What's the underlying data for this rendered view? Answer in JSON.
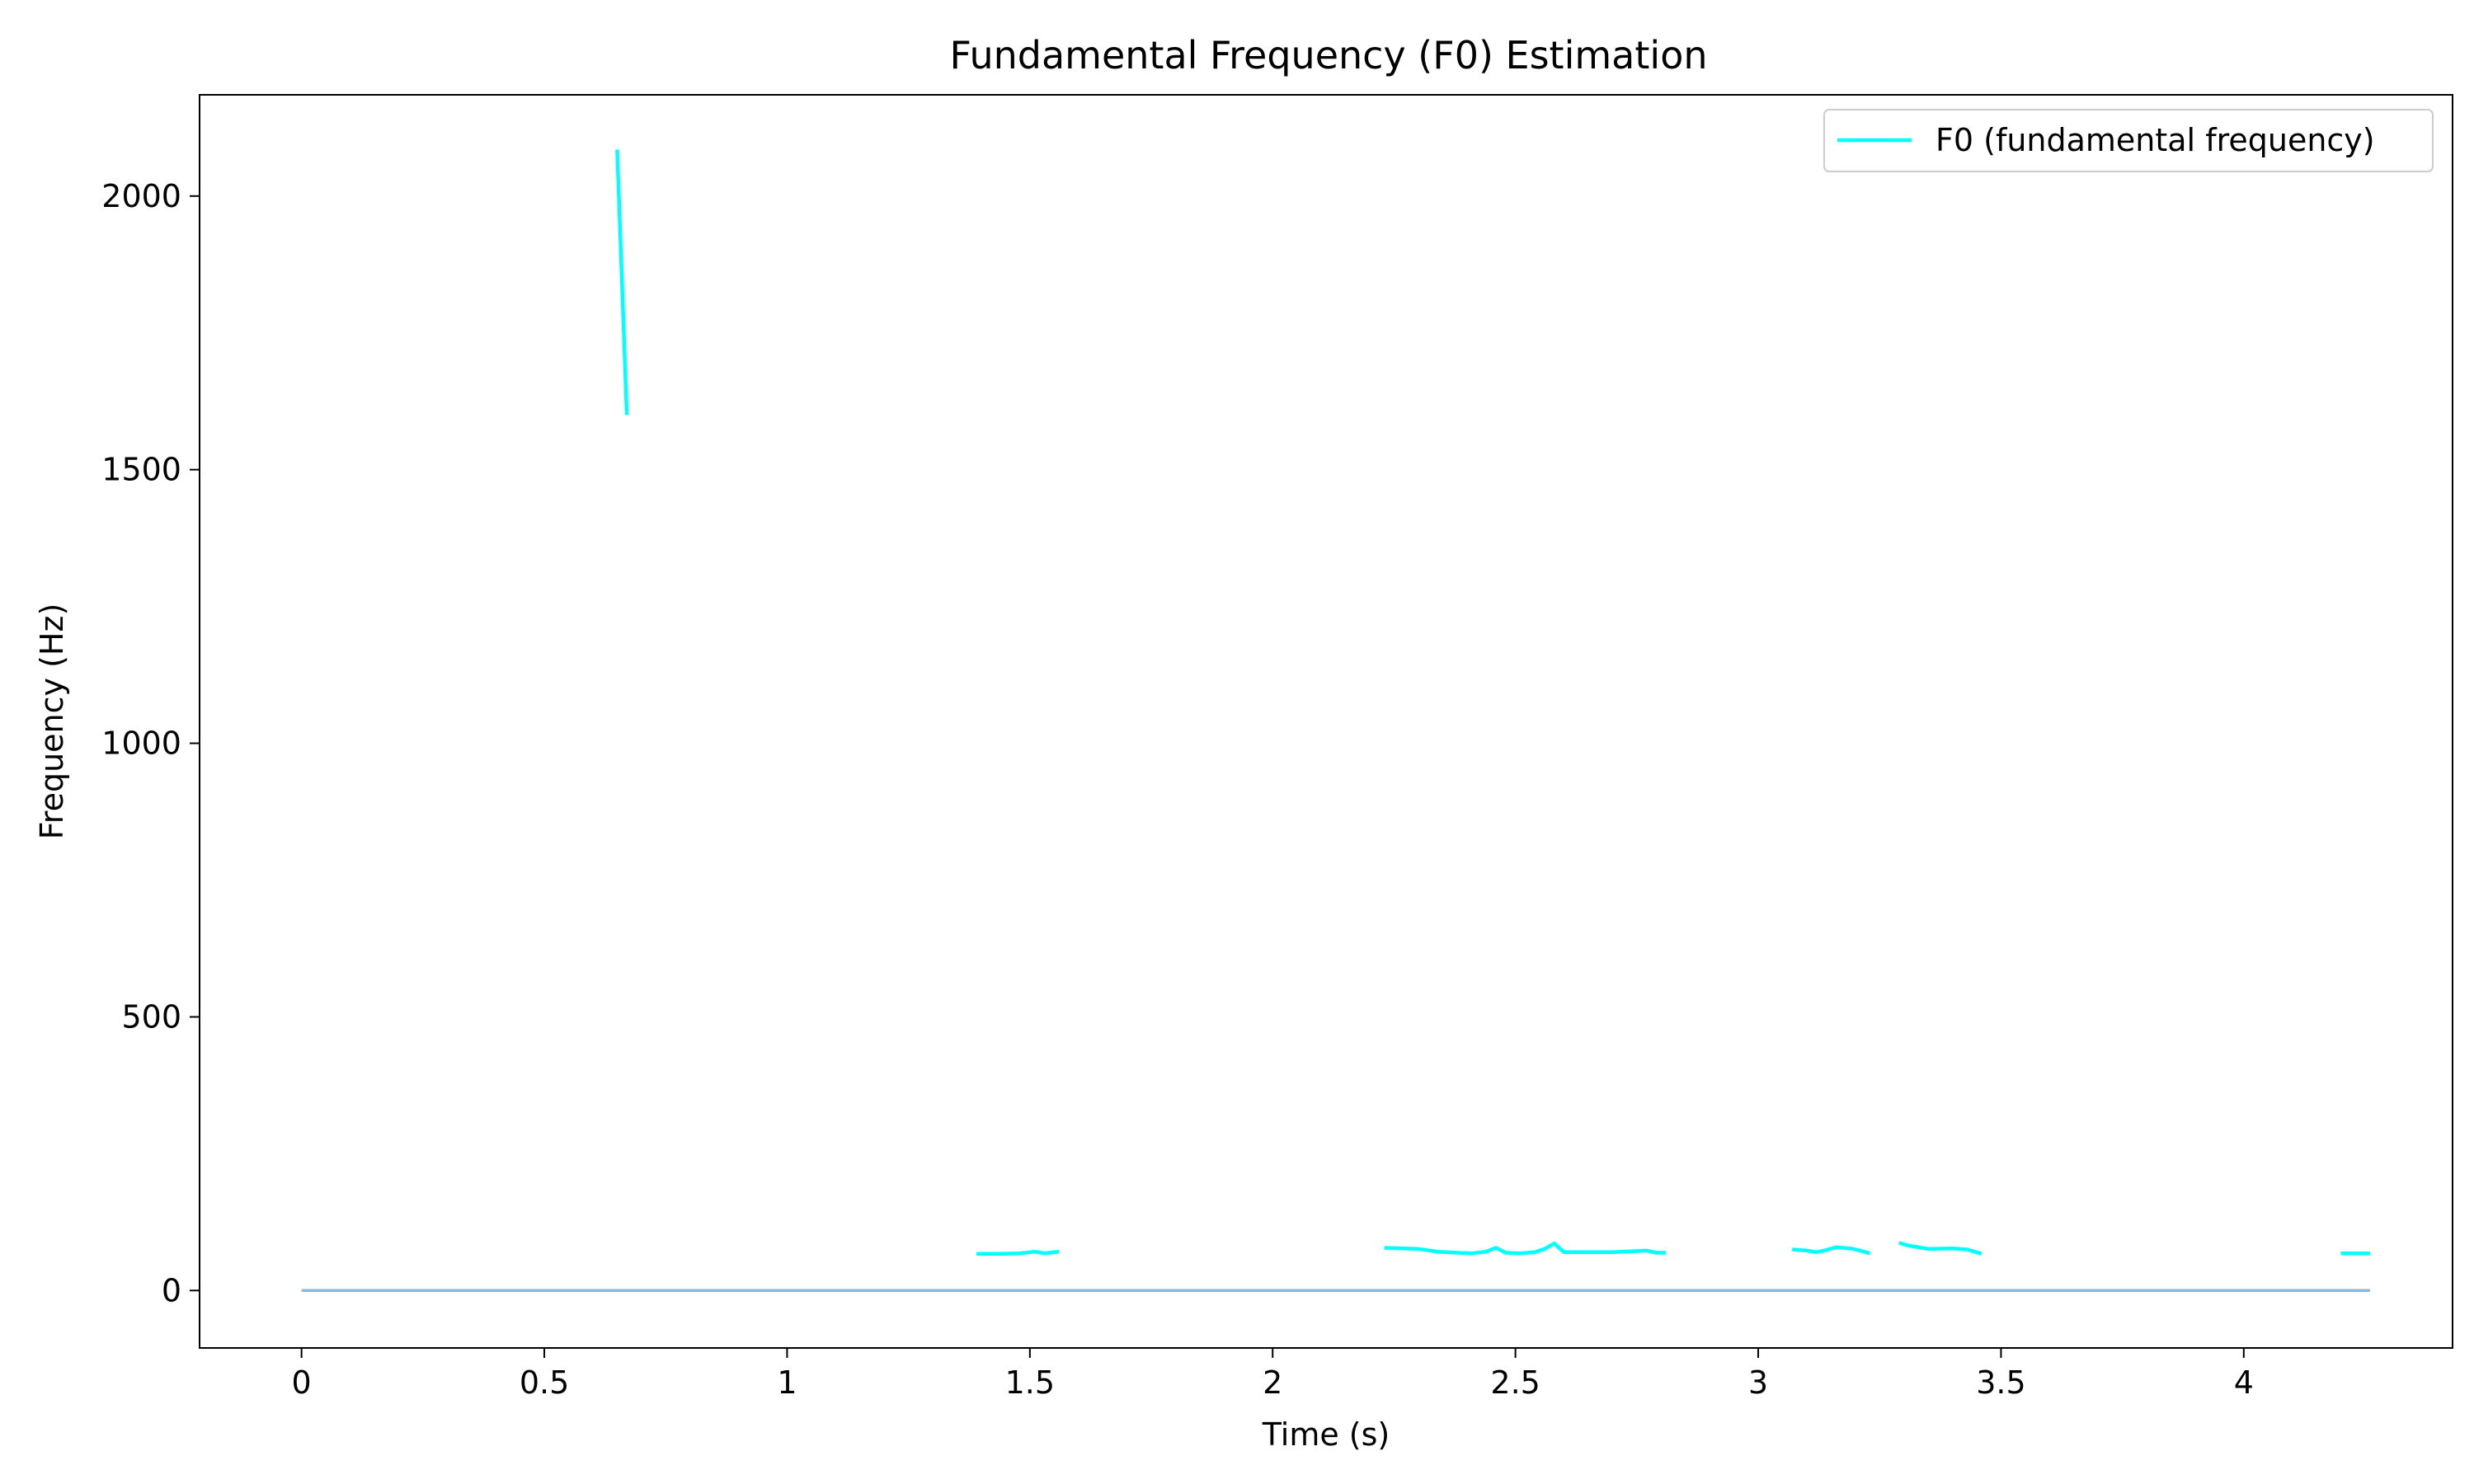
{
  "chart_data": {
    "type": "line",
    "title": "Fundamental Frequency (F0) Estimation",
    "xlabel": "Time (s)",
    "ylabel": "Frequency (Hz)",
    "xlim": [
      -0.21,
      4.43
    ],
    "ylim": [
      -105,
      2185
    ],
    "xticks": [
      0,
      0.5,
      1,
      1.5,
      2,
      2.5,
      3,
      3.5,
      4
    ],
    "xtick_labels": [
      "0",
      "0.5",
      "1",
      "1.5",
      "2",
      "2.5",
      "3",
      "3.5",
      "4"
    ],
    "yticks": [
      0,
      500,
      1000,
      1500,
      2000
    ],
    "ytick_labels": [
      "0",
      "500",
      "1000",
      "1500",
      "2000"
    ],
    "grid": false,
    "legend_position": "top-right",
    "colors": {
      "f0": "#00ffff",
      "baseline": "#89b8d8"
    },
    "series": [
      {
        "name": "F0 (fundamental frequency)",
        "color": "#00ffff",
        "segments": [
          [
            [
              0.65,
              2085
            ],
            [
              0.67,
              1600
            ]
          ],
          [
            [
              1.39,
              67
            ],
            [
              1.44,
              67
            ],
            [
              1.48,
              68
            ],
            [
              1.51,
              71
            ],
            [
              1.53,
              68
            ],
            [
              1.56,
              71
            ]
          ],
          [
            [
              2.23,
              78
            ],
            [
              2.27,
              77
            ],
            [
              2.3,
              76
            ],
            [
              2.34,
              71
            ],
            [
              2.38,
              69
            ],
            [
              2.41,
              68
            ],
            [
              2.44,
              71
            ],
            [
              2.46,
              78
            ],
            [
              2.48,
              69
            ],
            [
              2.51,
              68
            ],
            [
              2.54,
              70
            ],
            [
              2.56,
              76
            ],
            [
              2.58,
              86
            ],
            [
              2.6,
              70
            ],
            [
              2.65,
              70
            ],
            [
              2.7,
              70
            ],
            [
              2.75,
              72
            ],
            [
              2.77,
              73
            ],
            [
              2.79,
              69
            ],
            [
              2.81,
              69
            ]
          ],
          [
            [
              3.07,
              75
            ],
            [
              3.1,
              73
            ],
            [
              3.12,
              70
            ],
            [
              3.14,
              74
            ],
            [
              3.16,
              79
            ],
            [
              3.19,
              77
            ],
            [
              3.21,
              73
            ],
            [
              3.23,
              68
            ]
          ],
          [
            [
              3.29,
              87
            ],
            [
              3.31,
              82
            ],
            [
              3.35,
              76
            ],
            [
              3.4,
              77
            ],
            [
              3.43,
              75
            ],
            [
              3.46,
              67
            ]
          ],
          [
            [
              4.2,
              68
            ],
            [
              4.26,
              68
            ]
          ]
        ]
      },
      {
        "name": "",
        "color": "#89b8d8",
        "segments": [
          [
            [
              0,
              0
            ],
            [
              4.26,
              0
            ]
          ]
        ]
      }
    ]
  }
}
